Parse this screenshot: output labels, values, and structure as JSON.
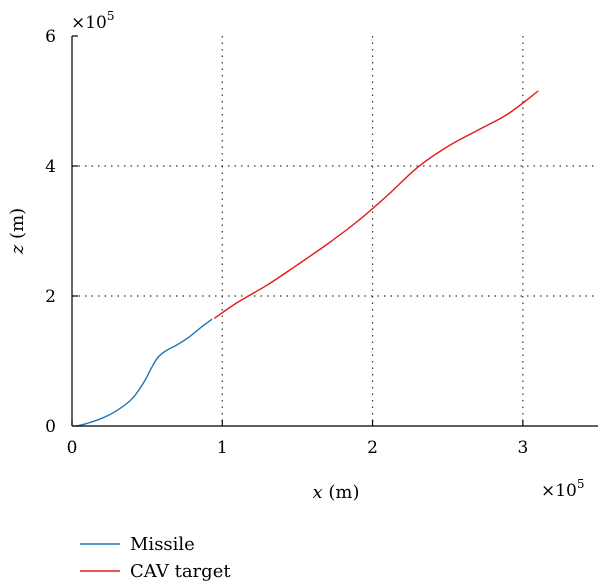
{
  "chart_data": {
    "type": "line",
    "xlabel": {
      "var": "x",
      "unit": " (m)"
    },
    "ylabel": {
      "var": "z",
      "unit": " (m)"
    },
    "x_exponent": {
      "base": "×10",
      "power": "5"
    },
    "y_exponent": {
      "base": "×10",
      "power": "5"
    },
    "xlim": [
      0,
      3.5
    ],
    "ylim": [
      0,
      6
    ],
    "x_ticks": [
      0,
      1,
      2,
      3
    ],
    "y_ticks": [
      0,
      2,
      4,
      6
    ],
    "x_tick_labels": [
      "0",
      "1",
      "2",
      "3"
    ],
    "y_tick_labels": [
      "0",
      "2",
      "4",
      "6"
    ],
    "grid": true,
    "legend_position": "bottom-left-outside",
    "series": [
      {
        "name": "Missile",
        "color": "#1f77b4",
        "x": [
          0.03,
          0.1,
          0.2,
          0.3,
          0.4,
          0.48,
          0.53,
          0.57,
          0.62,
          0.7,
          0.78,
          0.86,
          0.93
        ],
        "y": [
          0.0,
          0.04,
          0.12,
          0.24,
          0.42,
          0.68,
          0.9,
          1.05,
          1.15,
          1.25,
          1.37,
          1.52,
          1.64
        ]
      },
      {
        "name": "CAV target",
        "color": "#e31a1c",
        "x": [
          0.95,
          1.1,
          1.3,
          1.5,
          1.7,
          1.9,
          2.1,
          2.3,
          2.5,
          2.7,
          2.9,
          3.1
        ],
        "y": [
          1.66,
          1.9,
          2.17,
          2.48,
          2.8,
          3.15,
          3.55,
          3.98,
          4.3,
          4.55,
          4.8,
          5.15
        ]
      }
    ]
  }
}
